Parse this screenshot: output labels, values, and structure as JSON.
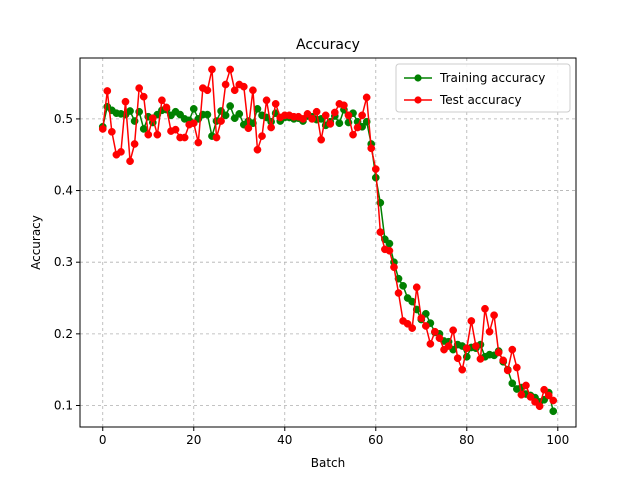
{
  "chart_data": {
    "type": "line",
    "title": "Accuracy",
    "xlabel": "Batch",
    "ylabel": "Accuracy",
    "xlim": [
      -5,
      104
    ],
    "ylim": [
      0.07,
      0.585
    ],
    "xticks": [
      0,
      20,
      40,
      60,
      80,
      100
    ],
    "yticks": [
      0.1,
      0.2,
      0.3,
      0.4,
      0.5
    ],
    "grid": true,
    "legend_position": "top-right",
    "series": [
      {
        "name": "Training accuracy",
        "color": "#008000",
        "marker": "circle",
        "values": [
          0.489,
          0.517,
          0.512,
          0.508,
          0.507,
          0.506,
          0.511,
          0.497,
          0.51,
          0.486,
          0.503,
          0.495,
          0.506,
          0.512,
          0.513,
          0.505,
          0.51,
          0.506,
          0.5,
          0.498,
          0.514,
          0.5,
          0.506,
          0.506,
          0.476,
          0.497,
          0.511,
          0.505,
          0.518,
          0.501,
          0.507,
          0.492,
          0.497,
          0.494,
          0.514,
          0.505,
          0.502,
          0.496,
          0.508,
          0.497,
          0.502,
          0.502,
          0.5,
          0.501,
          0.497,
          0.504,
          0.503,
          0.499,
          0.5,
          0.491,
          0.496,
          0.504,
          0.494,
          0.513,
          0.495,
          0.508,
          0.496,
          0.489,
          0.496,
          0.465,
          0.418,
          0.383,
          0.332,
          0.326,
          0.3,
          0.277,
          0.267,
          0.25,
          0.245,
          0.234,
          0.22,
          0.228,
          0.215,
          0.202,
          0.2,
          0.19,
          0.189,
          0.178,
          0.185,
          0.183,
          0.168,
          0.181,
          0.18,
          0.185,
          0.168,
          0.171,
          0.17,
          0.176,
          0.161,
          0.15,
          0.131,
          0.123,
          0.125,
          0.116,
          0.114,
          0.111,
          0.105,
          0.108,
          0.118,
          0.092
        ]
      },
      {
        "name": "Test accuracy",
        "color": "#ff0000",
        "marker": "circle",
        "values": [
          0.486,
          0.539,
          0.482,
          0.45,
          0.454,
          0.524,
          0.441,
          0.465,
          0.543,
          0.531,
          0.478,
          0.501,
          0.478,
          0.526,
          0.516,
          0.483,
          0.485,
          0.474,
          0.474,
          0.492,
          0.494,
          0.467,
          0.543,
          0.54,
          0.569,
          0.474,
          0.497,
          0.548,
          0.569,
          0.54,
          0.548,
          0.545,
          0.487,
          0.54,
          0.457,
          0.476,
          0.526,
          0.488,
          0.521,
          0.502,
          0.505,
          0.505,
          0.503,
          0.503,
          0.5,
          0.507,
          0.5,
          0.51,
          0.471,
          0.505,
          0.493,
          0.509,
          0.521,
          0.519,
          0.505,
          0.478,
          0.488,
          0.505,
          0.53,
          0.459,
          0.43,
          0.342,
          0.318,
          0.316,
          0.293,
          0.257,
          0.218,
          0.214,
          0.208,
          0.265,
          0.222,
          0.211,
          0.186,
          0.203,
          0.194,
          0.178,
          0.183,
          0.205,
          0.166,
          0.15,
          0.18,
          0.218,
          0.183,
          0.165,
          0.235,
          0.203,
          0.226,
          0.174,
          0.163,
          0.149,
          0.178,
          0.153,
          0.115,
          0.128,
          0.112,
          0.105,
          0.099,
          0.122,
          0.114,
          0.107
        ]
      }
    ]
  }
}
